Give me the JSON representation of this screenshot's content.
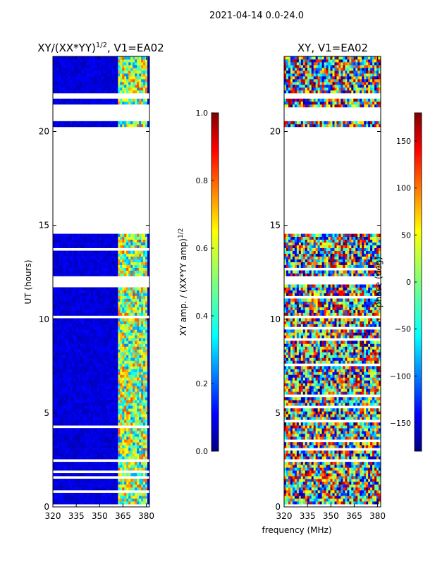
{
  "figure": {
    "suptitle": "2021-04-14 0.0-24.0",
    "shared_xlabel": "frequency (MHz)"
  },
  "chart_data": [
    {
      "type": "heatmap",
      "title": "XY/(XX*YY)",
      "title_sup": "1/2",
      "title_tail": ", V1=EA02",
      "xlabel": "",
      "ylabel": "UT (hours)",
      "x_ticks": [
        "320",
        "335",
        "350",
        "365",
        "380"
      ],
      "x_tick_values": [
        320,
        335,
        350,
        365,
        380
      ],
      "xlim": [
        320,
        382
      ],
      "y_ticks": [
        "0",
        "5",
        "10",
        "15",
        "20"
      ],
      "y_tick_values": [
        0,
        5,
        10,
        15,
        20
      ],
      "ylim": [
        0,
        24
      ],
      "colormap": "jet",
      "colorbar": {
        "label": "XY amp. / (XX*YY amp)",
        "label_sup": "1/2",
        "range": [
          0.0,
          1.0
        ],
        "ticks": [
          "0.0",
          "0.2",
          "0.4",
          "0.6",
          "0.8",
          "1.0"
        ],
        "tick_values": [
          0.0,
          0.2,
          0.4,
          0.6,
          0.8,
          1.0
        ]
      },
      "no_data_ut_ranges": [
        [
          2.4,
          2.6
        ],
        [
          11.9,
          12.3
        ],
        [
          14.6,
          20.2
        ],
        [
          20.5,
          21.3
        ],
        [
          21.7,
          22.0
        ]
      ],
      "description_values": {
        "low_band_level": 0.05,
        "high_band_mhz": [
          362,
          381
        ],
        "high_band_level": 0.5
      }
    },
    {
      "type": "heatmap",
      "title": "XY, V1=EA02",
      "xlabel": "",
      "ylabel": "",
      "x_ticks": [
        "320",
        "335",
        "350",
        "365",
        "380"
      ],
      "x_tick_values": [
        320,
        335,
        350,
        365,
        380
      ],
      "xlim": [
        320,
        382
      ],
      "y_ticks": [
        "0",
        "5",
        "10",
        "15",
        "20"
      ],
      "y_tick_values": [
        0,
        5,
        10,
        15,
        20
      ],
      "ylim": [
        0,
        24
      ],
      "colormap": "jet",
      "colorbar": {
        "label": "phase (deg)",
        "range": [
          -180,
          180
        ],
        "ticks": [
          "−150",
          "−100",
          "−50",
          "0",
          "50",
          "100",
          "150"
        ],
        "tick_values": [
          -150,
          -100,
          -50,
          0,
          50,
          100,
          150
        ]
      },
      "no_data_ut_ranges": [
        [
          2.4,
          2.6
        ],
        [
          11.9,
          12.3
        ],
        [
          14.6,
          20.2
        ],
        [
          20.5,
          21.3
        ],
        [
          21.7,
          22.0
        ]
      ]
    }
  ],
  "colors": {
    "axis": "#000000",
    "background": "#ffffff",
    "jet_stops": [
      "#00007f",
      "#0000ff",
      "#007fff",
      "#00ffff",
      "#7fff7f",
      "#ffff00",
      "#ff7f00",
      "#ff0000",
      "#7f0000"
    ]
  }
}
